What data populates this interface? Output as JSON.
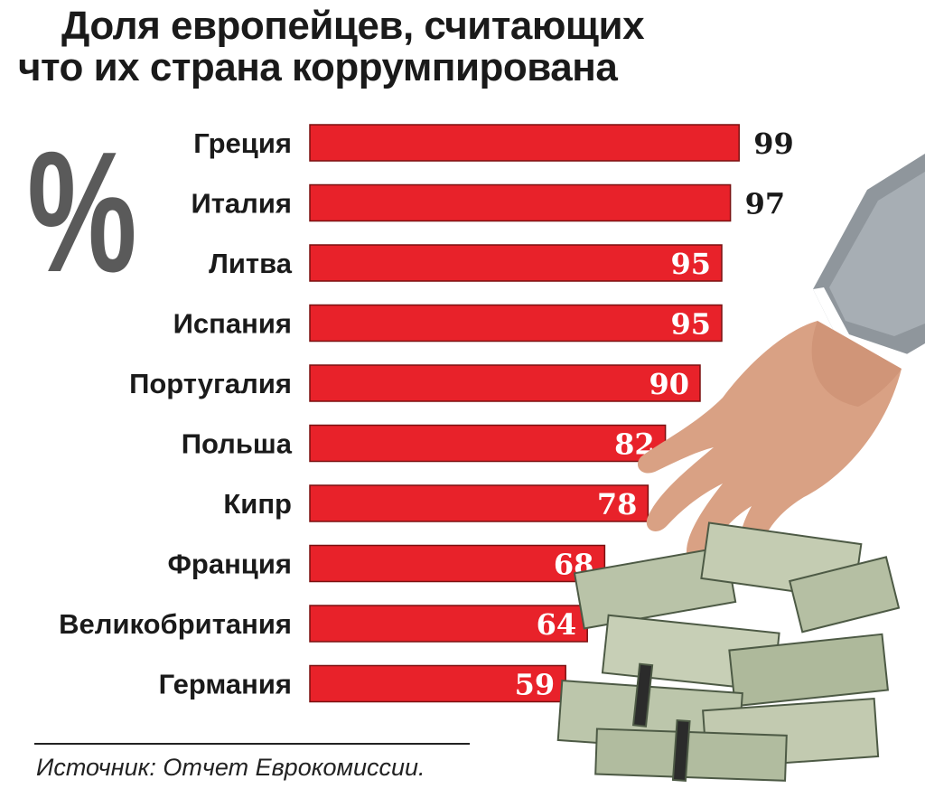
{
  "title": {
    "line1": "Доля европейцев, считающих",
    "line2": "что их страна коррумпирована"
  },
  "unit_symbol": "%",
  "source": "Источник: Отчет Еврокомиссии.",
  "colors": {
    "bar": "#e8222a",
    "bar_border": "#7a1010",
    "text": "#1a1a1a",
    "percent": "#5a5a5a"
  },
  "illustration": {
    "icon": "hand-on-money-stack-icon"
  },
  "chart_data": {
    "type": "bar",
    "orientation": "horizontal",
    "title": "Доля европейцев, считающих что их страна коррумпирована",
    "categories": [
      "Греция",
      "Италия",
      "Литва",
      "Испания",
      "Португалия",
      "Польша",
      "Кипр",
      "Франция",
      "Великобритания",
      "Германия"
    ],
    "values": [
      99,
      97,
      95,
      95,
      90,
      82,
      78,
      68,
      64,
      59
    ],
    "value_labels": [
      "99",
      "97",
      "95",
      "95",
      "90",
      "82",
      "78",
      "68",
      "64",
      "59"
    ],
    "xlim": [
      0,
      100
    ],
    "grid": false,
    "legend": "none"
  }
}
